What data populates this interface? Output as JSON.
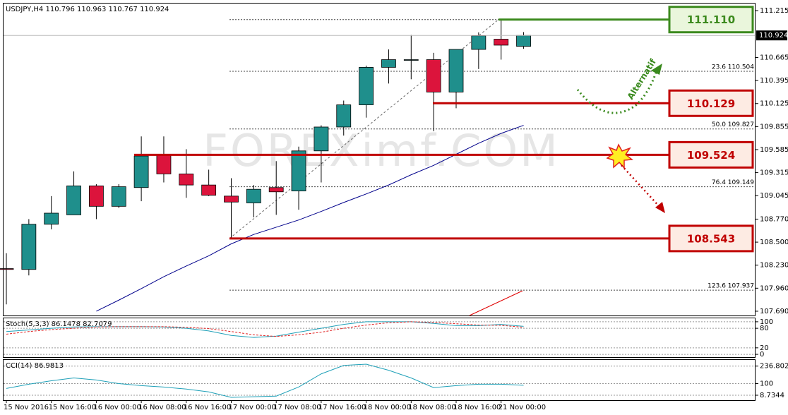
{
  "chart_data": [
    {
      "type": "candlestick",
      "title": "USDJPY,H4  110.796 110.963 110.767 110.924",
      "categories": [
        "15 Nov 2016",
        null,
        "15 Nov 16:00",
        null,
        "16 Nov 00:00",
        null,
        "16 Nov 08:00",
        null,
        "16 Nov 16:00",
        null,
        "17 Nov 00:00",
        null,
        "17 Nov 08:00",
        null,
        "17 Nov 16:00",
        null,
        "18 Nov 00:00",
        null,
        "18 Nov 08:00",
        null,
        "18 Nov 16:00",
        null,
        "21 Nov 00:00",
        null
      ],
      "open": [
        108.19,
        108.18,
        108.71,
        108.82,
        109.16,
        108.92,
        109.14,
        109.52,
        109.3,
        109.17,
        109.04,
        108.96,
        109.14,
        109.1,
        109.57,
        109.85,
        110.11,
        110.55,
        110.64,
        110.64,
        110.26,
        110.76,
        110.88,
        110.796
      ],
      "high": [
        108.37,
        108.77,
        109.04,
        109.33,
        109.18,
        109.18,
        109.74,
        109.74,
        109.59,
        109.35,
        109.25,
        109.17,
        109.45,
        109.62,
        109.87,
        110.16,
        110.57,
        110.76,
        110.93,
        110.72,
        110.76,
        110.96,
        111.12,
        110.963
      ],
      "low": [
        107.77,
        108.11,
        108.65,
        108.82,
        108.77,
        108.9,
        108.98,
        109.2,
        109.02,
        109.04,
        108.54,
        108.79,
        108.82,
        108.88,
        109.2,
        109.75,
        109.96,
        110.36,
        110.41,
        109.8,
        110.07,
        110.53,
        110.64,
        110.767
      ],
      "close": [
        108.18,
        108.71,
        108.84,
        109.16,
        108.92,
        109.15,
        109.51,
        109.3,
        109.17,
        109.05,
        108.97,
        109.12,
        109.09,
        109.57,
        109.85,
        110.11,
        110.55,
        110.64,
        110.64,
        110.26,
        110.76,
        110.92,
        110.81,
        110.924
      ],
      "colors": {
        "up": "#1f8f8c",
        "down": "#dc143c"
      },
      "ma": {
        "color": "#00008b",
        "values": [
          null,
          null,
          null,
          null,
          107.69,
          107.82,
          107.955,
          108.095,
          108.22,
          108.34,
          108.48,
          108.59,
          108.675,
          108.76,
          108.86,
          108.965,
          109.065,
          109.17,
          109.29,
          109.4,
          109.53,
          109.66,
          109.775,
          109.87
        ]
      },
      "ylim": [
        107.64,
        111.298
      ],
      "yticks": [
        111.215,
        110.665,
        110.395,
        110.125,
        109.855,
        109.585,
        109.315,
        109.045,
        {
          "value": 108.77,
          "label": "108.770"
        },
        {
          "value": 108.5,
          "label": "108.500"
        },
        {
          "value": 108.23,
          "label": "108.230"
        },
        {
          "value": 107.96,
          "label": "107.960"
        },
        {
          "value": 107.69,
          "label": "107.690"
        }
      ],
      "current_price": 110.924,
      "levels": [
        {
          "value": 111.11,
          "label": "111.110",
          "color": "#3c8a1e",
          "fill": "#eaf6dc"
        },
        {
          "value": 110.129,
          "label": "110.129",
          "color": "#c00000",
          "fill": "#fdebe3"
        },
        {
          "value": 109.524,
          "label": "109.524",
          "color": "#c00000",
          "fill": "#fdebe3"
        },
        {
          "value": 108.543,
          "label": "108.543",
          "color": "#c00000",
          "fill": "#fdebe3"
        }
      ],
      "fibo": [
        {
          "value": 111.11
        },
        {
          "value": 110.504,
          "label": "23.6 110.504"
        },
        {
          "value": 109.827,
          "label": "50.0 109.827"
        },
        {
          "value": 109.149,
          "label": "76.4 109.149"
        },
        {
          "value": 107.937,
          "label": "123.6 107.937"
        }
      ],
      "annotations": [
        "Alternatif"
      ],
      "watermark": "FOREXimf.COM"
    },
    {
      "type": "line",
      "title": "Stoch(5,3,3) 86.1478 82.7079",
      "series": [
        {
          "color": "#1fa0b8",
          "values": [
            70,
            75,
            80,
            84,
            85,
            85,
            85,
            84,
            80,
            72,
            58,
            52,
            56,
            68,
            80,
            92,
            100,
            100,
            100,
            95,
            88,
            88,
            92,
            86
          ]
        },
        {
          "color": "#e02020",
          "dash": true,
          "values": [
            62,
            70,
            76,
            80,
            84,
            85,
            85,
            85,
            83,
            79,
            70,
            60,
            55,
            60,
            68,
            80,
            90,
            97,
            100,
            98,
            94,
            90,
            89,
            83
          ]
        }
      ],
      "ylim": [
        -8.5,
        110.6
      ],
      "yticks": [
        100,
        80,
        20,
        0
      ]
    },
    {
      "type": "line",
      "title": "CCI(14) 86.9813",
      "series": [
        {
          "color": "#1fa0b8",
          "values": [
            62,
            95,
            122,
            144,
            128,
            100,
            84,
            73,
            57,
            35,
            -8,
            -3,
            2,
            73,
            176,
            242,
            252,
            204,
            144,
            68,
            84,
            95,
            95,
            87
          ]
        }
      ],
      "ylim": [
        -30,
        285
      ],
      "yticks": [
        236.8029,
        100,
        8.7344
      ]
    }
  ]
}
